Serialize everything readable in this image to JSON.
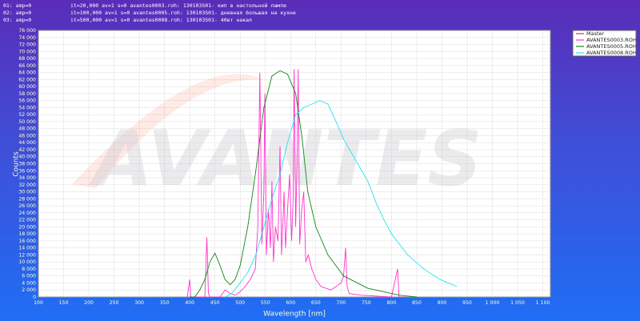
{
  "header_lines": [
    [
      "01:  amp=0",
      "it=20,000 av=1 s=0 avantes0003.roh: 130103S01- кип в настольной лампе"
    ],
    [
      "02:  amp=0",
      "it=100,000 av=1 s=0 avantes0005.roh: 130103S01- дневная большая на кухне"
    ],
    [
      "03:  amp=0",
      "it=500,000 av=1 s=0 avantes0008.roh: 130103S01- 40вт накал"
    ]
  ],
  "chart_data": {
    "type": "line",
    "watermark": "AVANTES",
    "x_label": "Wavelength [nm]",
    "y_label": "Counts",
    "xlim": [
      100,
      1115
    ],
    "ylim": [
      0,
      76000
    ],
    "grid": true,
    "legend": "right",
    "xticks": [
      100,
      150,
      200,
      250,
      300,
      350,
      400,
      450,
      500,
      550,
      600,
      650,
      700,
      750,
      800,
      850,
      900,
      950,
      {
        "value": 1000,
        "label": "1 000"
      },
      {
        "value": 1050,
        "label": "1 050"
      },
      {
        "value": 1100,
        "label": "1 100"
      }
    ],
    "yticks": [
      0,
      {
        "value": 2000,
        "label": "2 000"
      },
      {
        "value": 4000,
        "label": "4 000"
      },
      {
        "value": 6000,
        "label": "6 000"
      },
      {
        "value": 8000,
        "label": "8 000"
      },
      {
        "value": 10000,
        "label": "10 000"
      },
      {
        "value": 12000,
        "label": "12 000"
      },
      {
        "value": 14000,
        "label": "14 000"
      },
      {
        "value": 16000,
        "label": "16 000"
      },
      {
        "value": 18000,
        "label": "18 000"
      },
      {
        "value": 20000,
        "label": "20 000"
      },
      {
        "value": 22000,
        "label": "22 000"
      },
      {
        "value": 24000,
        "label": "24 000"
      },
      {
        "value": 26000,
        "label": "26 000"
      },
      {
        "value": 28000,
        "label": "28 000"
      },
      {
        "value": 30000,
        "label": "30 000"
      },
      {
        "value": 32000,
        "label": "32 000"
      },
      {
        "value": 34000,
        "label": "34 000"
      },
      {
        "value": 36000,
        "label": "36 000"
      },
      {
        "value": 38000,
        "label": "38 000"
      },
      {
        "value": 40000,
        "label": "40 000"
      },
      {
        "value": 42000,
        "label": "42 000"
      },
      {
        "value": 44000,
        "label": "44 000"
      },
      {
        "value": 46000,
        "label": "46 000"
      },
      {
        "value": 48000,
        "label": "48 000"
      },
      {
        "value": 50000,
        "label": "50 000"
      },
      {
        "value": 52000,
        "label": "52 000"
      },
      {
        "value": 54000,
        "label": "54 000"
      },
      {
        "value": 56000,
        "label": "56 000"
      },
      {
        "value": 58000,
        "label": "58 000"
      },
      {
        "value": 60000,
        "label": "60 000"
      },
      {
        "value": 62000,
        "label": "62 000"
      },
      {
        "value": 64000,
        "label": "64 000"
      },
      {
        "value": 66000,
        "label": "66 000"
      },
      {
        "value": 68000,
        "label": "68 000"
      },
      {
        "value": 70000,
        "label": "70 000"
      },
      {
        "value": 72000,
        "label": "72 000"
      },
      {
        "value": 74000,
        "label": "74 000"
      },
      {
        "value": 76000,
        "label": "76 000"
      }
    ],
    "series": [
      {
        "name": "Master",
        "color": "#cc3366",
        "x": [],
        "values": []
      },
      {
        "name": "AVANTES0003.ROH",
        "color": "#ff33cc",
        "x": [
          395,
          400,
          402,
          405,
          430,
          434,
          437,
          440,
          460,
          470,
          480,
          490,
          500,
          510,
          520,
          530,
          535,
          539,
          543,
          547,
          549,
          552,
          556,
          560,
          563,
          566,
          570,
          575,
          579,
          582,
          585,
          587,
          590,
          594,
          598,
          602,
          605,
          607,
          610,
          613,
          615,
          618,
          622,
          626,
          630,
          635,
          642,
          650,
          660,
          680,
          700,
          705,
          709,
          712,
          716,
          740,
          800,
          812,
          815,
          830
        ],
        "values": [
          0,
          5000,
          0,
          0,
          0,
          17000,
          1000,
          0,
          0,
          2000,
          1000,
          500,
          1500,
          3000,
          5000,
          8000,
          20000,
          64000,
          15000,
          30000,
          58000,
          12000,
          25000,
          14000,
          33000,
          10000,
          20000,
          16000,
          43000,
          12000,
          22000,
          30000,
          14000,
          25000,
          35000,
          16000,
          28000,
          65000,
          20000,
          40000,
          65000,
          15000,
          25000,
          30000,
          10000,
          12000,
          8000,
          5000,
          3000,
          2000,
          4000,
          6000,
          14000,
          3000,
          1000,
          500,
          0,
          8000,
          0,
          0
        ]
      },
      {
        "name": "AVANTES0005.ROH",
        "color": "#118811",
        "x": [
          400,
          410,
          420,
          430,
          440,
          450,
          460,
          470,
          480,
          490,
          500,
          515,
          531,
          547,
          563,
          579,
          594,
          610,
          623,
          634,
          650,
          674,
          705,
          753,
          816,
          850
        ],
        "values": [
          0,
          0,
          2000,
          5000,
          10000,
          12500,
          9000,
          5000,
          3500,
          5000,
          9000,
          20000,
          36000,
          54000,
          63000,
          64500,
          63500,
          58000,
          45000,
          30000,
          20000,
          12000,
          6000,
          2500,
          500,
          0
        ]
      },
      {
        "name": "AVANTES0008.ROH",
        "color": "#22e5ee",
        "x": [
          470,
          483,
          500,
          515,
          531,
          547,
          563,
          579,
          594,
          610,
          626,
          642,
          658,
          674,
          690,
          705,
          721,
          737,
          753,
          769,
          785,
          800,
          816,
          832,
          848,
          864,
          880,
          896,
          912,
          930
        ],
        "values": [
          0,
          1000,
          4000,
          7000,
          12000,
          20000,
          28000,
          35000,
          44000,
          52000,
          54000,
          55000,
          56000,
          55000,
          50000,
          45000,
          41000,
          37000,
          33000,
          27000,
          22000,
          18000,
          15000,
          12000,
          10000,
          8000,
          6500,
          5000,
          4000,
          3000
        ]
      }
    ]
  }
}
